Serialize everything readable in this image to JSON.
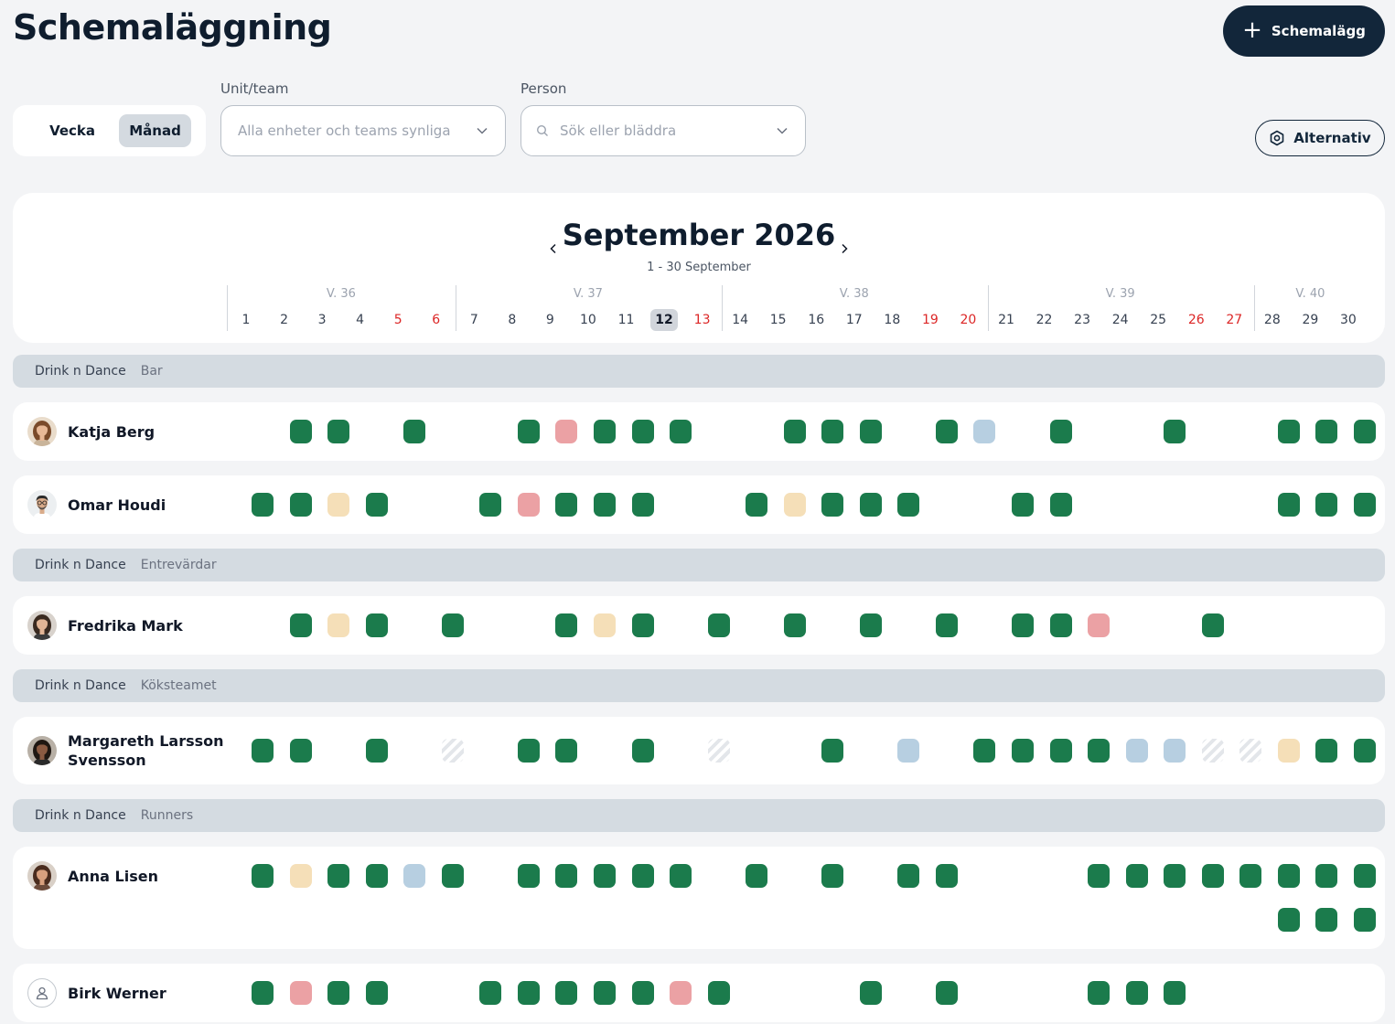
{
  "page": {
    "title": "Schemaläggning",
    "schedule_button": "Schemalägg"
  },
  "view_toggle": {
    "week_label": "Vecka",
    "month_label": "Månad",
    "selected": "Månad"
  },
  "filters": {
    "unit_label": "Unit/team",
    "unit_value": "Alla enheter och teams synliga",
    "person_label": "Person",
    "person_placeholder": "Sök eller bläddra"
  },
  "options_button": "Alternativ",
  "calendar": {
    "month_title": "September 2026",
    "range_label": "1 - 30 September",
    "weeks": [
      {
        "label": "V. 36",
        "days": [
          1,
          6
        ]
      },
      {
        "label": "V. 37",
        "days": [
          7,
          13
        ]
      },
      {
        "label": "V. 38",
        "days": [
          14,
          20
        ]
      },
      {
        "label": "V. 39",
        "days": [
          21,
          27
        ]
      },
      {
        "label": "V. 40",
        "days": [
          28,
          30
        ]
      }
    ],
    "days": [
      "1",
      "2",
      "3",
      "4",
      "5",
      "6",
      "7",
      "8",
      "9",
      "10",
      "11",
      "12",
      "13",
      "14",
      "15",
      "16",
      "17",
      "18",
      "19",
      "20",
      "21",
      "22",
      "23",
      "24",
      "25",
      "26",
      "27",
      "28",
      "29",
      "30"
    ],
    "weekend_days": [
      5,
      6,
      13,
      19,
      20,
      26,
      27
    ],
    "today": 12
  },
  "legend_colors": {
    "g": "#1b7b4c",
    "r": "#eba1a4",
    "y": "#f5dfb8",
    "b": "#b7cfe1",
    "h": "hatched"
  },
  "groups": [
    {
      "org": "Drink n Dance",
      "team": "Bar",
      "people": [
        {
          "name": "Katja Berg",
          "avatar": "photo-katja",
          "shifts": [
            [
              [
                2,
                "g"
              ],
              [
                3,
                "g"
              ],
              [
                5,
                "g"
              ],
              [
                8,
                "g"
              ],
              [
                9,
                "r"
              ],
              [
                10,
                "g"
              ],
              [
                11,
                "g"
              ],
              [
                12,
                "g"
              ],
              [
                15,
                "g"
              ],
              [
                16,
                "g"
              ],
              [
                17,
                "g"
              ],
              [
                19,
                "g"
              ],
              [
                20,
                "b"
              ],
              [
                22,
                "g"
              ],
              [
                25,
                "g"
              ],
              [
                28,
                "g"
              ],
              [
                29,
                "g"
              ],
              [
                30,
                "g"
              ]
            ]
          ]
        },
        {
          "name": "Omar Houdi",
          "avatar": "photo-omar",
          "shifts": [
            [
              [
                1,
                "g"
              ],
              [
                2,
                "g"
              ],
              [
                3,
                "y"
              ],
              [
                4,
                "g"
              ],
              [
                7,
                "g"
              ],
              [
                8,
                "r"
              ],
              [
                9,
                "g"
              ],
              [
                10,
                "g"
              ],
              [
                11,
                "g"
              ],
              [
                14,
                "g"
              ],
              [
                15,
                "y"
              ],
              [
                16,
                "g"
              ],
              [
                17,
                "g"
              ],
              [
                18,
                "g"
              ],
              [
                21,
                "g"
              ],
              [
                22,
                "g"
              ],
              [
                28,
                "g"
              ],
              [
                29,
                "g"
              ],
              [
                30,
                "g"
              ]
            ]
          ]
        }
      ]
    },
    {
      "org": "Drink n Dance",
      "team": "Entrevärdar",
      "people": [
        {
          "name": "Fredrika Mark",
          "avatar": "photo-fredrika",
          "shifts": [
            [
              [
                2,
                "g"
              ],
              [
                3,
                "y"
              ],
              [
                4,
                "g"
              ],
              [
                6,
                "g"
              ],
              [
                9,
                "g"
              ],
              [
                10,
                "y"
              ],
              [
                11,
                "g"
              ],
              [
                13,
                "g"
              ],
              [
                15,
                "g"
              ],
              [
                17,
                "g"
              ],
              [
                19,
                "g"
              ],
              [
                21,
                "g"
              ],
              [
                22,
                "g"
              ],
              [
                23,
                "r"
              ],
              [
                26,
                "g"
              ]
            ]
          ]
        }
      ]
    },
    {
      "org": "Drink n Dance",
      "team": "Köksteamet",
      "people": [
        {
          "name": "Margareth Larsson Svensson",
          "name_line1": "Margareth Larsson",
          "name_line2": "Svensson",
          "avatar": "photo-margareth",
          "shifts": [
            [
              [
                1,
                "g"
              ],
              [
                2,
                "g"
              ],
              [
                4,
                "g"
              ],
              [
                6,
                "h"
              ],
              [
                8,
                "g"
              ],
              [
                9,
                "g"
              ],
              [
                11,
                "g"
              ],
              [
                13,
                "h"
              ],
              [
                16,
                "g"
              ],
              [
                18,
                "b"
              ],
              [
                20,
                "g"
              ],
              [
                21,
                "g"
              ],
              [
                22,
                "g"
              ],
              [
                23,
                "g"
              ],
              [
                24,
                "b"
              ],
              [
                25,
                "b"
              ],
              [
                26,
                "h"
              ],
              [
                27,
                "h"
              ],
              [
                28,
                "y"
              ],
              [
                29,
                "g"
              ],
              [
                30,
                "g"
              ]
            ]
          ]
        }
      ]
    },
    {
      "org": "Drink n Dance",
      "team": "Runners",
      "people": [
        {
          "name": "Anna Lisen",
          "avatar": "photo-anna",
          "shifts": [
            [
              [
                1,
                "g"
              ],
              [
                2,
                "y"
              ],
              [
                3,
                "g"
              ],
              [
                4,
                "g"
              ],
              [
                5,
                "b"
              ],
              [
                6,
                "g"
              ],
              [
                8,
                "g"
              ],
              [
                9,
                "g"
              ],
              [
                10,
                "g"
              ],
              [
                11,
                "g"
              ],
              [
                12,
                "g"
              ],
              [
                14,
                "g"
              ],
              [
                16,
                "g"
              ],
              [
                18,
                "g"
              ],
              [
                19,
                "g"
              ],
              [
                23,
                "g"
              ],
              [
                24,
                "g"
              ],
              [
                25,
                "g"
              ],
              [
                26,
                "g"
              ],
              [
                27,
                "g"
              ],
              [
                28,
                "g"
              ],
              [
                29,
                "g"
              ],
              [
                30,
                "g"
              ]
            ],
            [
              [
                28,
                "g"
              ],
              [
                29,
                "g"
              ],
              [
                30,
                "g"
              ]
            ]
          ]
        },
        {
          "name": "Birk Werner",
          "avatar": "user-placeholder-icon",
          "shifts": [
            [
              [
                1,
                "g"
              ],
              [
                2,
                "r"
              ],
              [
                3,
                "g"
              ],
              [
                4,
                "g"
              ],
              [
                7,
                "g"
              ],
              [
                8,
                "g"
              ],
              [
                9,
                "g"
              ],
              [
                10,
                "g"
              ],
              [
                11,
                "g"
              ],
              [
                12,
                "r"
              ],
              [
                13,
                "g"
              ],
              [
                17,
                "g"
              ],
              [
                19,
                "g"
              ],
              [
                23,
                "g"
              ],
              [
                24,
                "g"
              ],
              [
                25,
                "g"
              ]
            ]
          ]
        }
      ]
    }
  ]
}
